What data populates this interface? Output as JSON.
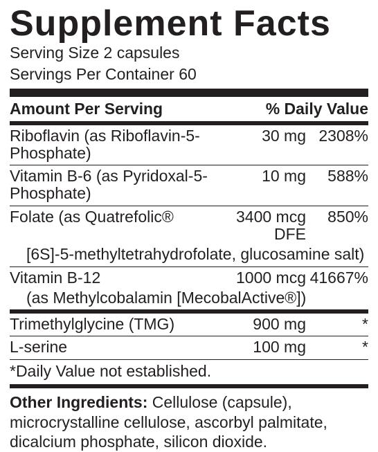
{
  "panel": {
    "title": "Supplement Facts",
    "serving_size_label": "Serving Size",
    "serving_size_value": "2 capsules",
    "servings_per_container_label": "Servings Per Container",
    "servings_per_container_value": "60",
    "header": {
      "name": "Amount Per Serving",
      "dv": "% Daily Value"
    },
    "rows": [
      {
        "name": "Riboflavin (as Riboflavin-5-Phosphate)",
        "amount": "30 mg",
        "dv": "2308%",
        "subline": null
      },
      {
        "name": "Vitamin B-6 (as Pyridoxal-5-Phosphate)",
        "amount": "10 mg",
        "dv": "588%",
        "subline": null
      },
      {
        "name": "Folate (as Quatrefolic®",
        "amount": "3400 mcg DFE",
        "dv": "850%",
        "subline": "[6S]-5-methyltetrahydrofolate, glucosamine salt)"
      },
      {
        "name": "Vitamin B-12",
        "amount": "1000 mcg",
        "dv": "41667%",
        "subline": "(as Methylcobalamin [MecobalActive®])"
      }
    ],
    "rows2": [
      {
        "name": "Trimethylglycine (TMG)",
        "amount": "900 mg",
        "dv": "*"
      },
      {
        "name": "L-serine",
        "amount": "100 mg",
        "dv": "*"
      }
    ],
    "footnote": "*Daily Value not established.",
    "other_label": "Other Ingredients:",
    "other_text": " Cellulose (capsule), microcrystalline cellulose, ascorbyl palmitate, dicalcium phosphate, silicon dioxide."
  }
}
